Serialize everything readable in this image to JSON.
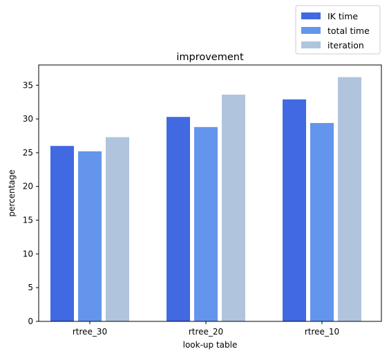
{
  "chart_data": {
    "type": "bar",
    "title": "improvement",
    "xlabel": "look-up table",
    "ylabel": "percentage",
    "categories": [
      "rtree_30",
      "rtree_20",
      "rtree_10"
    ],
    "series": [
      {
        "name": "IK time",
        "values": [
          26.0,
          30.3,
          32.9
        ],
        "color": "#4169e1"
      },
      {
        "name": "total time",
        "values": [
          25.2,
          28.8,
          29.4
        ],
        "color": "#6495ed"
      },
      {
        "name": "iteration",
        "values": [
          27.3,
          33.6,
          36.2
        ],
        "color": "#b0c4de"
      }
    ],
    "ylim": [
      0,
      38
    ],
    "yticks": [
      0,
      5,
      10,
      15,
      20,
      25,
      30,
      35
    ],
    "grid": false,
    "legend": "upper-right, above plot"
  }
}
